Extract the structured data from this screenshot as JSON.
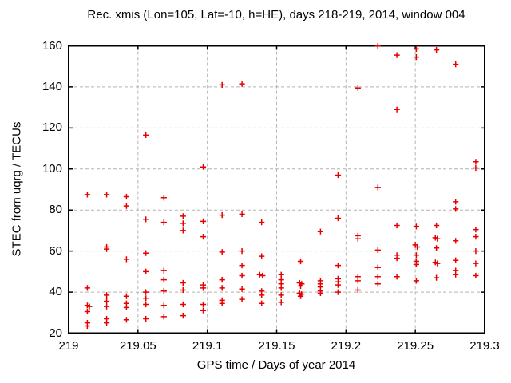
{
  "window": {
    "title": "Rec. xmis (Lon=105, Lat=-10, h=HE), days 218-219, 2014, window 004"
  },
  "chart_data": {
    "type": "scatter",
    "title": "Rec. xmis (Lon=105, Lat=-10, h=HE), days 218-219, 2014, window 004",
    "xlabel": "GPS time / Days of year 2014",
    "ylabel": "STEC from uqrg / TECUs",
    "xlim": [
      219.0,
      219.3
    ],
    "ylim": [
      20,
      160
    ],
    "xticks": [
      219.0,
      219.05,
      219.1,
      219.15,
      219.2,
      219.25,
      219.3
    ],
    "xtick_labels": [
      "219",
      "219.05",
      "219.1",
      "219.15",
      "219.2",
      "219.25",
      "219.3"
    ],
    "yticks": [
      20,
      40,
      60,
      80,
      100,
      120,
      140,
      160
    ],
    "ytick_labels": [
      "20",
      "40",
      "60",
      "80",
      "100",
      "120",
      "140",
      "160"
    ],
    "grid": true,
    "legend": "none",
    "marker": "plus",
    "marker_color": "#e60000",
    "grid_color": "#b4b4b4",
    "axis_color": "#000000",
    "points": [
      [
        219.0135,
        87.5
      ],
      [
        219.0135,
        42
      ],
      [
        219.0135,
        33.5
      ],
      [
        219.015,
        33
      ],
      [
        219.0135,
        30.5
      ],
      [
        219.0135,
        25
      ],
      [
        219.0135,
        23.5
      ],
      [
        219.0274,
        87.5
      ],
      [
        219.0274,
        62
      ],
      [
        219.0274,
        61
      ],
      [
        219.0274,
        38.5
      ],
      [
        219.0274,
        35.5
      ],
      [
        219.0274,
        33
      ],
      [
        219.0274,
        27
      ],
      [
        219.0274,
        25
      ],
      [
        219.0417,
        86.5
      ],
      [
        219.0417,
        82
      ],
      [
        219.0417,
        56
      ],
      [
        219.0417,
        38
      ],
      [
        219.0417,
        34.5
      ],
      [
        219.0417,
        32.5
      ],
      [
        219.0417,
        26.5
      ],
      [
        219.0557,
        116.5
      ],
      [
        219.0557,
        75.5
      ],
      [
        219.0557,
        59
      ],
      [
        219.0557,
        50
      ],
      [
        219.0557,
        40
      ],
      [
        219.0557,
        37
      ],
      [
        219.0557,
        34
      ],
      [
        219.0557,
        27
      ],
      [
        219.0687,
        86
      ],
      [
        219.0687,
        74
      ],
      [
        219.0687,
        50.5
      ],
      [
        219.0687,
        46
      ],
      [
        219.0687,
        40.5
      ],
      [
        219.0687,
        33.5
      ],
      [
        219.0687,
        28
      ],
      [
        219.0825,
        77
      ],
      [
        219.0825,
        73.5
      ],
      [
        219.0825,
        70
      ],
      [
        219.0825,
        44.5
      ],
      [
        219.0825,
        41
      ],
      [
        219.0825,
        34
      ],
      [
        219.0825,
        28.5
      ],
      [
        219.097,
        101
      ],
      [
        219.097,
        74.5
      ],
      [
        219.097,
        67
      ],
      [
        219.097,
        43.5
      ],
      [
        219.097,
        42
      ],
      [
        219.097,
        34
      ],
      [
        219.097,
        31
      ],
      [
        219.1107,
        141
      ],
      [
        219.1107,
        77.5
      ],
      [
        219.1107,
        59.5
      ],
      [
        219.1107,
        46
      ],
      [
        219.1107,
        42
      ],
      [
        219.1107,
        36
      ],
      [
        219.1107,
        34.5
      ],
      [
        219.125,
        141.5
      ],
      [
        219.125,
        78
      ],
      [
        219.125,
        60
      ],
      [
        219.125,
        53
      ],
      [
        219.125,
        48
      ],
      [
        219.125,
        41.5
      ],
      [
        219.125,
        36.5
      ],
      [
        219.1392,
        74
      ],
      [
        219.1392,
        57.5
      ],
      [
        219.1378,
        48.5
      ],
      [
        219.1398,
        48
      ],
      [
        219.1392,
        40.5
      ],
      [
        219.1392,
        38.5
      ],
      [
        219.1392,
        34.5
      ],
      [
        219.1533,
        48.5
      ],
      [
        219.1533,
        46
      ],
      [
        219.1533,
        44
      ],
      [
        219.1533,
        42
      ],
      [
        219.1533,
        38.5
      ],
      [
        219.1533,
        35
      ],
      [
        219.1673,
        55
      ],
      [
        219.1665,
        44.5
      ],
      [
        219.168,
        44
      ],
      [
        219.1673,
        43
      ],
      [
        219.1665,
        39.5
      ],
      [
        219.168,
        39
      ],
      [
        219.1673,
        38
      ],
      [
        219.1816,
        69.5
      ],
      [
        219.1816,
        45.5
      ],
      [
        219.1816,
        44
      ],
      [
        219.1816,
        42.5
      ],
      [
        219.1816,
        40.5
      ],
      [
        219.1816,
        39.5
      ],
      [
        219.1943,
        97
      ],
      [
        219.1943,
        76
      ],
      [
        219.1943,
        53
      ],
      [
        219.1943,
        46.5
      ],
      [
        219.1943,
        45
      ],
      [
        219.1943,
        43.5
      ],
      [
        219.1943,
        40
      ],
      [
        219.2086,
        139.5
      ],
      [
        219.2086,
        67.5
      ],
      [
        219.2086,
        66
      ],
      [
        219.2086,
        47.5
      ],
      [
        219.2086,
        45.5
      ],
      [
        219.2086,
        41
      ],
      [
        219.223,
        160
      ],
      [
        219.223,
        91
      ],
      [
        219.223,
        60.5
      ],
      [
        219.223,
        52
      ],
      [
        219.223,
        47.5
      ],
      [
        219.223,
        44
      ],
      [
        219.2367,
        155.5
      ],
      [
        219.2367,
        129
      ],
      [
        219.2367,
        72.5
      ],
      [
        219.2367,
        58
      ],
      [
        219.2367,
        56.5
      ],
      [
        219.2367,
        47.5
      ],
      [
        219.2507,
        158.5
      ],
      [
        219.2507,
        154.5
      ],
      [
        219.2507,
        72
      ],
      [
        219.25,
        63
      ],
      [
        219.2514,
        62
      ],
      [
        219.2507,
        58
      ],
      [
        219.2507,
        55
      ],
      [
        219.2507,
        53.5
      ],
      [
        219.2507,
        45.5
      ],
      [
        219.2652,
        158
      ],
      [
        219.2652,
        72.5
      ],
      [
        219.2645,
        66.5
      ],
      [
        219.2659,
        66
      ],
      [
        219.2652,
        61.5
      ],
      [
        219.2645,
        54.5
      ],
      [
        219.2659,
        54
      ],
      [
        219.2652,
        47
      ],
      [
        219.2791,
        151
      ],
      [
        219.2791,
        84
      ],
      [
        219.2791,
        80.5
      ],
      [
        219.2791,
        65
      ],
      [
        219.2791,
        55.5
      ],
      [
        219.2791,
        50.5
      ],
      [
        219.2791,
        48.5
      ],
      [
        219.2936,
        103.5
      ],
      [
        219.2936,
        100.5
      ],
      [
        219.2936,
        70.5
      ],
      [
        219.2936,
        67
      ],
      [
        219.2936,
        60
      ],
      [
        219.2936,
        54
      ],
      [
        219.2936,
        48
      ]
    ]
  }
}
